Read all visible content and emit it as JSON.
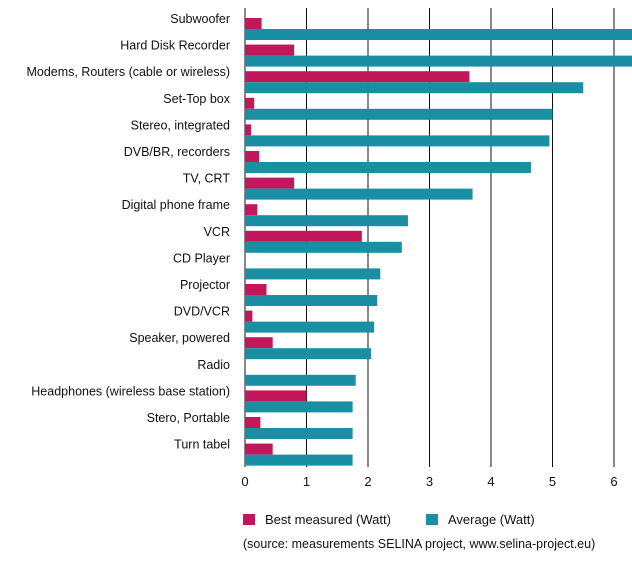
{
  "chart_data": {
    "type": "bar",
    "orientation": "horizontal",
    "categories": [
      "Subwoofer",
      "Hard Disk Recorder",
      "Modems, Routers (cable or wireless)",
      "Set-Top box",
      "Stereo, integrated",
      "DVB/BR, recorders",
      "TV, CRT",
      "Digital phone frame",
      "VCR",
      "CD Player",
      "Projector",
      "DVD/VCR",
      "Speaker, powered",
      "Radio",
      "Headphones (wireless base station)",
      "Stero, Portable",
      "Turn tabel"
    ],
    "series": [
      {
        "name": "Best measured (Watt)",
        "color": "#c2185b",
        "values": [
          0.27,
          0.8,
          3.65,
          0.15,
          0.1,
          0.23,
          0.8,
          0.2,
          1.9,
          0.0,
          0.35,
          0.12,
          0.45,
          0.0,
          1.0,
          0.25,
          0.45
        ]
      },
      {
        "name": "Average (Watt)",
        "color": "#1a8fa3",
        "values": [
          6.3,
          6.3,
          5.5,
          5.0,
          4.95,
          4.65,
          3.7,
          2.65,
          2.55,
          2.2,
          2.15,
          2.1,
          2.05,
          1.8,
          1.75,
          1.75,
          1.75
        ]
      }
    ],
    "xlim": [
      0,
      6.3
    ],
    "xticks": [
      0,
      1,
      2,
      3,
      4,
      5,
      6
    ],
    "grid": true,
    "legend_position": "bottom",
    "title": "",
    "xlabel": "",
    "ylabel": ""
  },
  "source_note": "(source: measurements SELINA project, www.selina-project.eu)"
}
